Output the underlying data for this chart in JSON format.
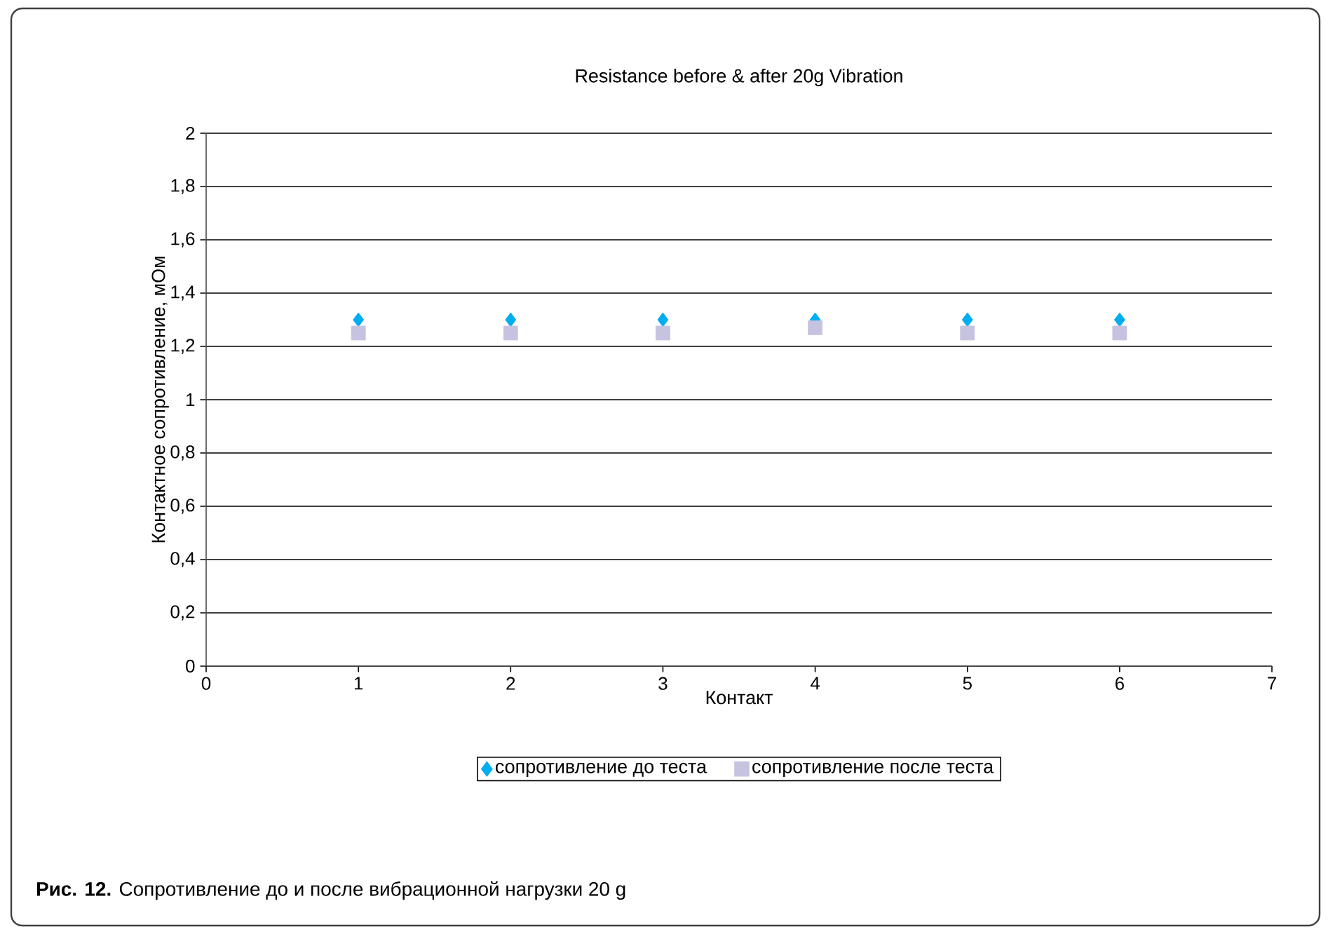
{
  "chart_data": {
    "type": "scatter",
    "title": "Resistance before & after 20g Vibration",
    "xlabel": "Контакт",
    "ylabel": "Контактное сопротивление, мОм",
    "x": [
      1,
      2,
      3,
      4,
      5,
      6
    ],
    "series": [
      {
        "name": "сопротивление до теста",
        "color": "#00aeef",
        "marker": "diamond",
        "values": [
          1.3,
          1.3,
          1.3,
          1.3,
          1.3,
          1.3
        ]
      },
      {
        "name": "сопротивление после теста",
        "color": "#c6c3e0",
        "marker": "square",
        "values": [
          1.25,
          1.25,
          1.25,
          1.27,
          1.25,
          1.25
        ]
      }
    ],
    "xlim": [
      0,
      7
    ],
    "xticks": [
      0,
      1,
      2,
      3,
      4,
      5,
      6,
      7
    ],
    "ylim": [
      0,
      2
    ],
    "yticks": [
      0,
      {
        "value": 0.2,
        "label": "0,2"
      },
      {
        "value": 0.4,
        "label": "0,4"
      },
      {
        "value": 0.6,
        "label": "0,6"
      },
      {
        "value": 0.8,
        "label": "0,8"
      },
      1,
      {
        "value": 1.2,
        "label": "1,2"
      },
      {
        "value": 1.4,
        "label": "1,4"
      },
      {
        "value": 1.6,
        "label": "1,6"
      },
      {
        "value": 1.8,
        "label": "1,8"
      },
      2
    ],
    "grid": "y",
    "legend": "bottom",
    "annotations": [
      "**Рис. 12.** Сопротивление до и после вибрационной нагрузки 20 g"
    ]
  }
}
